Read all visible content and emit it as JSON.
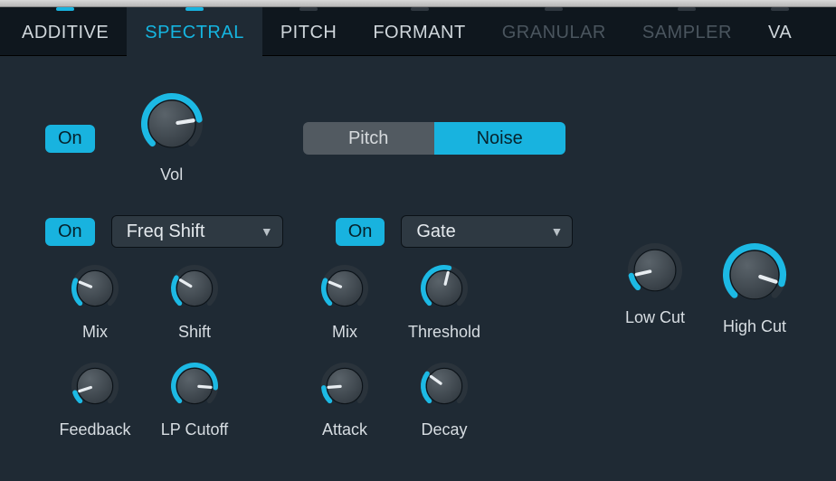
{
  "colors": {
    "accent": "#18b3df",
    "panel_bg": "#1f2a34",
    "tabbar_bg": "#0f171e",
    "knob_face_light": "#5a636a",
    "knob_face_dark": "#343c43",
    "knob_track": "#2a333b",
    "knob_arc": "#1cb9e4",
    "text": "#d7dde2"
  },
  "tabs": [
    {
      "label": "ADDITIVE",
      "active": false,
      "disabled": false,
      "tick": "#18b3df"
    },
    {
      "label": "SPECTRAL",
      "active": true,
      "disabled": false,
      "tick": "#18b3df"
    },
    {
      "label": "PITCH",
      "active": false,
      "disabled": false,
      "tick": "#303840"
    },
    {
      "label": "FORMANT",
      "active": false,
      "disabled": false,
      "tick": "#303840"
    },
    {
      "label": "GRANULAR",
      "active": false,
      "disabled": true,
      "tick": "#303840"
    },
    {
      "label": "SAMPLER",
      "active": false,
      "disabled": true,
      "tick": "#303840"
    },
    {
      "label": "VA",
      "active": false,
      "disabled": false,
      "tick": "#303840"
    }
  ],
  "toggle": {
    "pitch_label": "Pitch",
    "noise_label": "Noise",
    "selected": "noise"
  },
  "on_label": "On",
  "sections": {
    "vol": {
      "label": "Vol",
      "value": 0.8,
      "size": 70
    },
    "fx1_select": "Freq Shift",
    "fx2_select": "Gate",
    "mix1": {
      "label": "Mix",
      "value": 0.25,
      "size": 54
    },
    "shift": {
      "label": "Shift",
      "value": 0.28,
      "size": 54
    },
    "feedback": {
      "label": "Feedback",
      "value": 0.1,
      "size": 54
    },
    "lpcutoff": {
      "label": "LP Cutoff",
      "value": 0.85,
      "size": 54
    },
    "mix2": {
      "label": "Mix",
      "value": 0.25,
      "size": 54
    },
    "threshold": {
      "label": "Threshold",
      "value": 0.55,
      "size": 54
    },
    "attack": {
      "label": "Attack",
      "value": 0.15,
      "size": 54
    },
    "decay": {
      "label": "Decay",
      "value": 0.3,
      "size": 54
    },
    "lowcut": {
      "label": "Low Cut",
      "value": 0.12,
      "size": 62
    },
    "highcut": {
      "label": "High Cut",
      "value": 0.9,
      "size": 72
    }
  }
}
